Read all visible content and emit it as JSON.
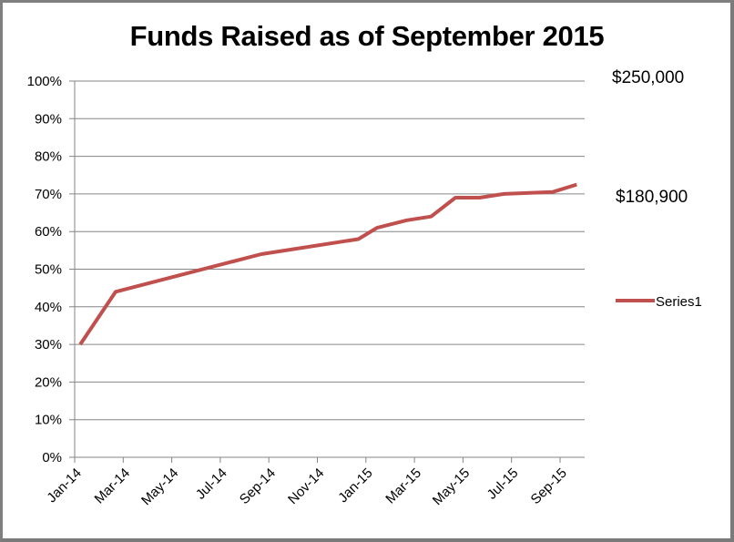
{
  "chart_data": {
    "type": "line",
    "title": "Funds Raised as of September 2015",
    "xlabel": "",
    "ylabel": "",
    "ylim": [
      0,
      1
    ],
    "y_ticks": [
      "0%",
      "10%",
      "20%",
      "30%",
      "40%",
      "50%",
      "60%",
      "70%",
      "80%",
      "90%",
      "100%"
    ],
    "x_ticks": [
      "Jan-14",
      "Mar-14",
      "May-14",
      "Jul-14",
      "Sep-14",
      "Nov-14",
      "Jan-15",
      "Mar-15",
      "May-15",
      "Jul-15",
      "Sep-15"
    ],
    "grid": true,
    "legend_position": "right",
    "series": [
      {
        "name": "Series1",
        "color": "#c0504d",
        "points": [
          {
            "date": "2014-01-08",
            "value": 0.3
          },
          {
            "date": "2014-02-22",
            "value": 0.44
          },
          {
            "date": "2014-08-22",
            "value": 0.54
          },
          {
            "date": "2014-12-22",
            "value": 0.58
          },
          {
            "date": "2015-01-15",
            "value": 0.61
          },
          {
            "date": "2015-02-22",
            "value": 0.63
          },
          {
            "date": "2015-03-22",
            "value": 0.64
          },
          {
            "date": "2015-04-22",
            "value": 0.69
          },
          {
            "date": "2015-05-22",
            "value": 0.69
          },
          {
            "date": "2015-06-22",
            "value": 0.7
          },
          {
            "date": "2015-08-22",
            "value": 0.705
          },
          {
            "date": "2015-09-22",
            "value": 0.725
          }
        ]
      }
    ],
    "annotations": [
      {
        "text": "$250,000",
        "position": "right, at 100% level"
      },
      {
        "text": "$180,900",
        "position": "right, near 70% level"
      }
    ]
  },
  "labels": {
    "title": "Funds Raised as of September 2015",
    "goal": "$250,000",
    "raised": "$180,900",
    "legend": "Series1"
  }
}
